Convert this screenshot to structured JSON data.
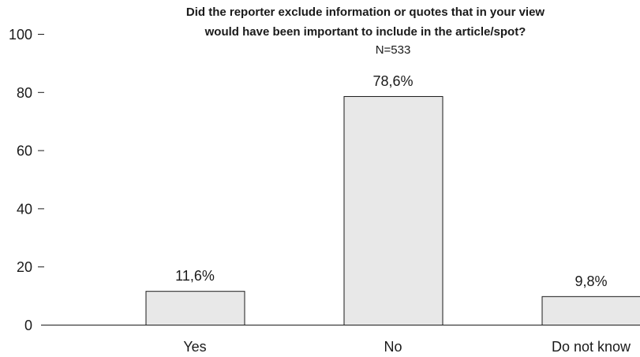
{
  "chart_data": {
    "type": "bar",
    "title": "Did the reporter exclude information or quotes that in your view would have been important to include in the article/spot?",
    "title_lines": [
      "Did the reporter exclude information or quotes that in your view",
      "would have been important to include in the article/spot?"
    ],
    "subtitle": "N=533",
    "categories": [
      "Yes",
      "No",
      "Do not know"
    ],
    "values": [
      11.6,
      78.6,
      9.8
    ],
    "value_labels": [
      "11,6%",
      "78,6%",
      "9,8%"
    ],
    "y_ticks": [
      0,
      20,
      40,
      60,
      80,
      100
    ],
    "ylim": [
      0,
      100
    ],
    "xlabel": "",
    "ylabel": "",
    "grid": false,
    "colors": {
      "bar_fill": "#e8e8e8",
      "bar_stroke": "#1a1a1a",
      "axis": "#1a1a1a",
      "text": "#1a1a1a"
    }
  }
}
